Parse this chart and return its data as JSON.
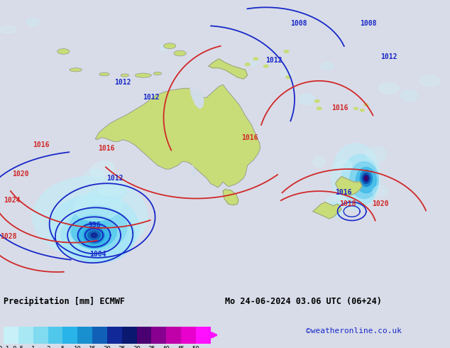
{
  "title_left": "Precipitation [mm] ECMWF",
  "title_right": "Mo 24-06-2024 03.06 UTC (06+24)",
  "credit": "©weatheronline.co.uk",
  "colorbar_levels": [
    0.1,
    0.5,
    1,
    2,
    5,
    10,
    15,
    20,
    25,
    30,
    35,
    40,
    45,
    50
  ],
  "colorbar_colors": [
    "#c8f0f8",
    "#a8e8f4",
    "#80daf0",
    "#50c8ec",
    "#28b4e8",
    "#1890d0",
    "#1060b8",
    "#102898",
    "#0a1870",
    "#4a0070",
    "#880090",
    "#c000a8",
    "#e800cc",
    "#ff10ff"
  ],
  "ocean_color": "#d0dce8",
  "land_color": "#c8dc78",
  "coast_color": "#888888",
  "isobar_blue": "#1828c8",
  "isobar_red": "#d02828",
  "legend_bg": "#d8dce8",
  "credit_color": "#1828c8",
  "figsize": [
    6.34,
    4.9
  ],
  "dpi": 100,
  "lon_min": 90,
  "lon_max": 200,
  "lat_min": -68,
  "lat_max": 12
}
